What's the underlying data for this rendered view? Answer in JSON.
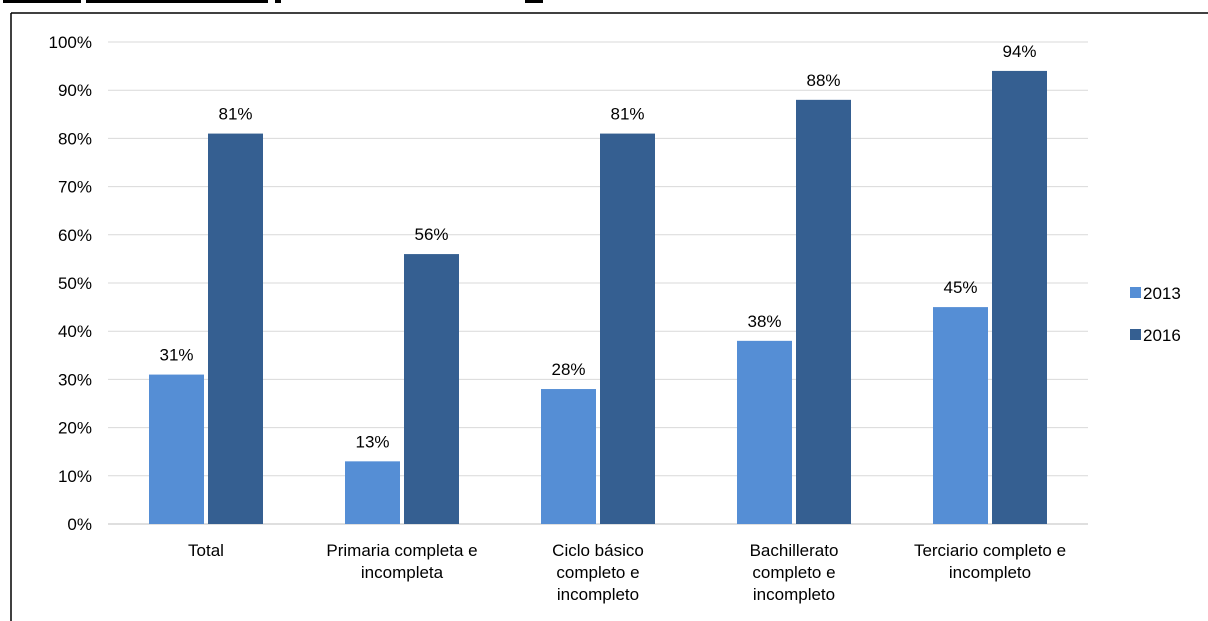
{
  "chart_data": {
    "type": "bar",
    "categories": [
      [
        "Total"
      ],
      [
        "Primaria completa e",
        "incompleta"
      ],
      [
        "Ciclo básico",
        "completo e",
        "incompleto"
      ],
      [
        "Bachillerato",
        "completo e",
        "incompleto"
      ],
      [
        "Terciario completo e",
        "incompleto"
      ]
    ],
    "series": [
      {
        "name": "2013",
        "color": "#558ed5",
        "values": [
          31,
          13,
          28,
          38,
          45
        ],
        "labels": [
          "31%",
          "13%",
          "28%",
          "38%",
          "45%"
        ]
      },
      {
        "name": "2016",
        "color": "#355f91",
        "values": [
          81,
          56,
          81,
          88,
          94
        ],
        "labels": [
          "81%",
          "56%",
          "81%",
          "88%",
          "94%"
        ]
      }
    ],
    "ylim": [
      0,
      100
    ],
    "yticks": [
      0,
      10,
      20,
      30,
      40,
      50,
      60,
      70,
      80,
      90,
      100
    ],
    "ytick_labels": [
      "0%",
      "10%",
      "20%",
      "30%",
      "40%",
      "50%",
      "60%",
      "70%",
      "80%",
      "90%",
      "100%"
    ],
    "grid": true,
    "legend": "right"
  }
}
